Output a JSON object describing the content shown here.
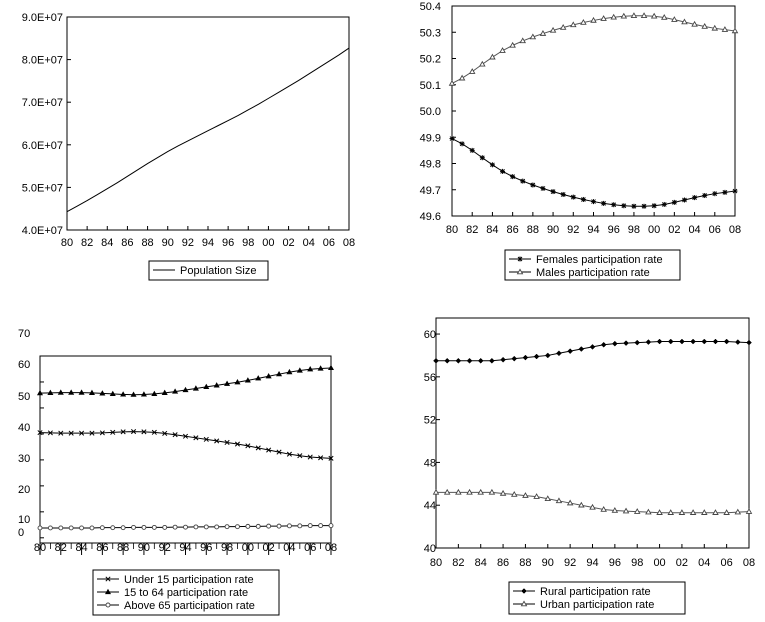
{
  "chart_data": [
    {
      "type": "line",
      "x_ticks": [
        "80",
        "82",
        "84",
        "86",
        "88",
        "90",
        "92",
        "94",
        "96",
        "98",
        "00",
        "02",
        "04",
        "06",
        "08"
      ],
      "y_ticks": [
        "4.0E+07",
        "5.0E+07",
        "6.0E+07",
        "7.0E+07",
        "8.0E+07",
        "9.0E+07"
      ],
      "ylim": [
        40000000,
        90000000
      ],
      "x": [
        1980,
        1981,
        1982,
        1983,
        1984,
        1985,
        1986,
        1987,
        1988,
        1989,
        1990,
        1991,
        1992,
        1993,
        1994,
        1995,
        1996,
        1997,
        1998,
        1999,
        2000,
        2001,
        2002,
        2003,
        2004,
        2005,
        2006,
        2007,
        2008
      ],
      "series": [
        {
          "name": "Population Size",
          "marker": "none",
          "values": [
            44300000,
            45600000,
            46900000,
            48300000,
            49700000,
            51100000,
            52600000,
            54100000,
            55600000,
            57000000,
            58400000,
            59700000,
            60900000,
            62100000,
            63300000,
            64500000,
            65700000,
            66900000,
            68200000,
            69500000,
            70900000,
            72300000,
            73700000,
            75100000,
            76600000,
            78100000,
            79600000,
            81100000,
            82700000
          ]
        }
      ],
      "legend_position": "bottom"
    },
    {
      "type": "line",
      "x_ticks": [
        "80",
        "82",
        "84",
        "86",
        "88",
        "90",
        "92",
        "94",
        "96",
        "98",
        "00",
        "02",
        "04",
        "06",
        "08"
      ],
      "y_ticks": [
        "49.6",
        "49.7",
        "49.8",
        "49.9",
        "50.0",
        "50.1",
        "50.2",
        "50.3",
        "50.4"
      ],
      "ylim": [
        49.6,
        50.4
      ],
      "x": [
        1980,
        1981,
        1982,
        1983,
        1984,
        1985,
        1986,
        1987,
        1988,
        1989,
        1990,
        1991,
        1992,
        1993,
        1994,
        1995,
        1996,
        1997,
        1998,
        1999,
        2000,
        2001,
        2002,
        2003,
        2004,
        2005,
        2006,
        2007,
        2008
      ],
      "series": [
        {
          "name": "Females  participation  rate",
          "marker": "star",
          "values": [
            49.895,
            49.875,
            49.85,
            49.822,
            49.795,
            49.77,
            49.75,
            49.733,
            49.718,
            49.705,
            49.693,
            49.682,
            49.672,
            49.663,
            49.655,
            49.648,
            49.643,
            49.639,
            49.637,
            49.637,
            49.639,
            49.644,
            49.652,
            49.661,
            49.67,
            49.678,
            49.685,
            49.69,
            49.695
          ]
        },
        {
          "name": "Males  participation  rate",
          "marker": "triangle",
          "values": [
            50.105,
            50.125,
            50.15,
            50.178,
            50.205,
            50.23,
            50.25,
            50.267,
            50.282,
            50.295,
            50.307,
            50.318,
            50.328,
            50.337,
            50.345,
            50.352,
            50.357,
            50.361,
            50.363,
            50.363,
            50.361,
            50.356,
            50.348,
            50.339,
            50.33,
            50.322,
            50.315,
            50.31,
            50.305
          ]
        }
      ],
      "legend_position": "bottom"
    },
    {
      "type": "line",
      "x_ticks": [
        "80",
        "82",
        "84",
        "86",
        "88",
        "90",
        "92",
        "94",
        "96",
        "98",
        "00",
        "02",
        "04",
        "06",
        "08"
      ],
      "y_ticks": [
        "0",
        "10",
        "20",
        "30",
        "40",
        "50",
        "60",
        "70"
      ],
      "ylim": [
        -2,
        70
      ],
      "x": [
        1980,
        1981,
        1982,
        1983,
        1984,
        1985,
        1986,
        1987,
        1988,
        1989,
        1990,
        1991,
        1992,
        1993,
        1994,
        1995,
        1996,
        1997,
        1998,
        1999,
        2000,
        2001,
        2002,
        2003,
        2004,
        2005,
        2006,
        2007,
        2008
      ],
      "series": [
        {
          "name": "Under 15 participation rate",
          "marker": "x",
          "values": [
            40.5,
            40.4,
            40.3,
            40.3,
            40.3,
            40.3,
            40.4,
            40.6,
            40.8,
            40.9,
            40.8,
            40.6,
            40.2,
            39.7,
            39.1,
            38.5,
            37.9,
            37.3,
            36.7,
            36.1,
            35.4,
            34.6,
            33.8,
            33.0,
            32.2,
            31.6,
            31.1,
            30.8,
            30.6
          ]
        },
        {
          "name": "15 to 64 participation rate",
          "marker": "triangle-filled",
          "values": [
            55.7,
            55.8,
            55.9,
            55.9,
            55.9,
            55.8,
            55.6,
            55.4,
            55.2,
            55.1,
            55.2,
            55.4,
            55.8,
            56.3,
            56.9,
            57.5,
            58.1,
            58.7,
            59.3,
            59.9,
            60.6,
            61.4,
            62.2,
            63.0,
            63.8,
            64.4,
            64.9,
            65.2,
            65.4
          ]
        },
        {
          "name": "Above 65 participation rate",
          "marker": "circle",
          "values": [
            3.8,
            3.8,
            3.8,
            3.8,
            3.8,
            3.8,
            3.9,
            3.9,
            3.9,
            4.0,
            4.0,
            4.0,
            4.0,
            4.1,
            4.1,
            4.2,
            4.2,
            4.2,
            4.3,
            4.3,
            4.4,
            4.4,
            4.5,
            4.5,
            4.6,
            4.6,
            4.7,
            4.7,
            4.7
          ]
        }
      ],
      "legend_position": "bottom"
    },
    {
      "type": "line",
      "x_ticks": [
        "80",
        "82",
        "84",
        "86",
        "88",
        "90",
        "92",
        "94",
        "96",
        "98",
        "00",
        "02",
        "04",
        "06",
        "08"
      ],
      "y_ticks": [
        "40",
        "44",
        "48",
        "52",
        "56",
        "60"
      ],
      "ylim": [
        40,
        61.5
      ],
      "x": [
        1980,
        1981,
        1982,
        1983,
        1984,
        1985,
        1986,
        1987,
        1988,
        1989,
        1990,
        1991,
        1992,
        1993,
        1994,
        1995,
        1996,
        1997,
        1998,
        1999,
        2000,
        2001,
        2002,
        2003,
        2004,
        2005,
        2006,
        2007,
        2008
      ],
      "series": [
        {
          "name": "Rural  participation  rate",
          "marker": "diamond",
          "values": [
            57.5,
            57.5,
            57.5,
            57.5,
            57.5,
            57.5,
            57.6,
            57.7,
            57.8,
            57.9,
            58.0,
            58.2,
            58.4,
            58.6,
            58.8,
            59.0,
            59.1,
            59.15,
            59.2,
            59.25,
            59.3,
            59.3,
            59.3,
            59.3,
            59.3,
            59.3,
            59.3,
            59.25,
            59.2
          ]
        },
        {
          "name": "Urban  participation  rate",
          "marker": "triangle",
          "values": [
            45.2,
            45.2,
            45.2,
            45.2,
            45.2,
            45.2,
            45.1,
            45.0,
            44.9,
            44.8,
            44.6,
            44.4,
            44.2,
            44.0,
            43.8,
            43.6,
            43.5,
            43.45,
            43.4,
            43.35,
            43.3,
            43.3,
            43.3,
            43.3,
            43.3,
            43.3,
            43.3,
            43.35,
            43.4
          ]
        }
      ],
      "legend_position": "bottom"
    }
  ]
}
